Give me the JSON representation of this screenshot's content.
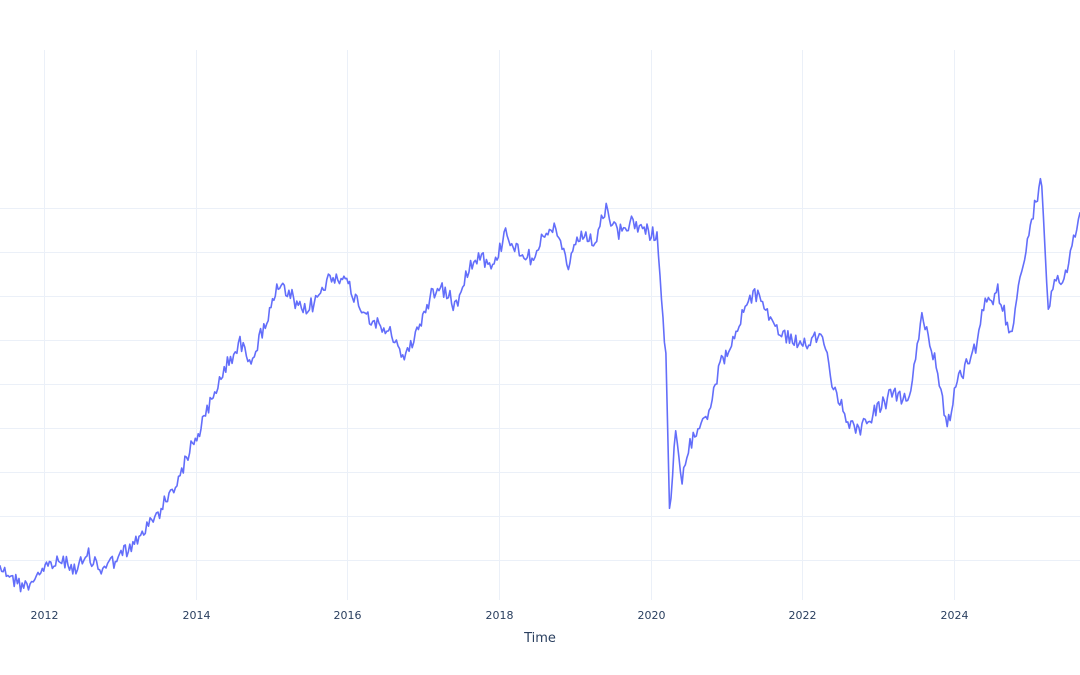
{
  "chart_data": {
    "type": "line",
    "title": "",
    "xlabel": "Time",
    "ylabel": "",
    "x_range": [
      "2011-06-01",
      "2025-09-01"
    ],
    "y_range": [
      -1.9,
      10.6
    ],
    "grid": true,
    "legend": "none",
    "colors": {
      "series": "#636efa",
      "grid": "#ebf0f8",
      "text": "#2a3f5f",
      "background": "#ffffff"
    },
    "x_ticks": [
      {
        "value": "2012-01-01",
        "label": "2012"
      },
      {
        "value": "2014-01-01",
        "label": "2014"
      },
      {
        "value": "2016-01-01",
        "label": "2016"
      },
      {
        "value": "2018-01-01",
        "label": "2018"
      },
      {
        "value": "2020-01-01",
        "label": "2020"
      },
      {
        "value": "2022-01-01",
        "label": "2022"
      },
      {
        "value": "2024-01-01",
        "label": "2024"
      }
    ],
    "y_gridlines": [
      -1,
      0,
      1,
      2,
      3,
      4,
      5,
      6,
      7
    ],
    "series": [
      {
        "x": [
          "2011-06-01",
          "2011-08-01",
          "2011-10-01",
          "2011-12-01",
          "2012-02-01",
          "2012-04-01",
          "2012-06-01",
          "2012-08-01",
          "2012-10-01",
          "2012-12-01",
          "2013-02-01",
          "2013-04-01",
          "2013-06-01",
          "2013-08-01",
          "2013-10-01",
          "2013-12-01",
          "2014-02-01",
          "2014-04-01",
          "2014-06-01",
          "2014-08-01",
          "2014-10-01",
          "2014-12-01",
          "2015-02-01",
          "2015-04-01",
          "2015-06-01",
          "2015-08-01",
          "2015-10-01",
          "2015-12-01",
          "2016-02-01",
          "2016-04-01",
          "2016-06-01",
          "2016-08-01",
          "2016-10-01",
          "2016-12-01",
          "2017-02-01",
          "2017-04-01",
          "2017-06-01",
          "2017-08-01",
          "2017-10-01",
          "2017-12-01",
          "2018-02-01",
          "2018-04-01",
          "2018-06-01",
          "2018-08-01",
          "2018-10-01",
          "2018-12-01",
          "2019-02-01",
          "2019-04-01",
          "2019-06-01",
          "2019-08-01",
          "2019-10-01",
          "2019-12-01",
          "2020-02-01",
          "2020-03-15",
          "2020-04-01",
          "2020-05-01",
          "2020-06-01",
          "2020-08-01",
          "2020-10-01",
          "2020-12-01",
          "2021-02-01",
          "2021-04-01",
          "2021-06-01",
          "2021-08-01",
          "2021-10-01",
          "2021-12-01",
          "2022-02-01",
          "2022-04-01",
          "2022-06-01",
          "2022-08-01",
          "2022-10-01",
          "2022-12-01",
          "2023-02-01",
          "2023-04-01",
          "2023-06-01",
          "2023-08-01",
          "2023-10-01",
          "2023-12-01",
          "2024-02-01",
          "2024-04-01",
          "2024-06-01",
          "2024-08-01",
          "2024-10-01",
          "2024-12-01",
          "2025-02-01",
          "2025-03-01",
          "2025-04-01",
          "2025-05-01",
          "2025-06-01",
          "2025-07-01",
          "2025-08-01",
          "2025-09-01"
        ],
        "values": [
          -1.1,
          -1.4,
          -1.6,
          -1.3,
          -1.1,
          -1.0,
          -1.2,
          -0.9,
          -1.2,
          -1.0,
          -0.8,
          -0.5,
          -0.1,
          0.3,
          0.8,
          1.5,
          2.1,
          2.8,
          3.5,
          3.9,
          3.6,
          4.4,
          5.2,
          5.0,
          4.6,
          4.9,
          5.4,
          5.5,
          5.0,
          4.6,
          4.3,
          4.1,
          3.6,
          4.2,
          5.0,
          5.2,
          4.8,
          5.6,
          6.0,
          5.6,
          6.5,
          6.0,
          5.9,
          6.3,
          6.5,
          5.7,
          6.4,
          6.2,
          6.9,
          6.4,
          6.7,
          6.5,
          6.4,
          3.6,
          0.1,
          1.8,
          0.8,
          2.0,
          2.3,
          3.5,
          3.9,
          4.8,
          5.1,
          4.5,
          4.1,
          4.0,
          3.8,
          4.2,
          3.0,
          2.2,
          2.0,
          2.3,
          2.6,
          2.8,
          2.6,
          4.6,
          3.6,
          2.1,
          3.2,
          3.6,
          4.8,
          5.1,
          4.2,
          5.7,
          7.2,
          7.6,
          4.6,
          5.5,
          5.3,
          5.7,
          6.3,
          6.9
        ]
      }
    ]
  }
}
